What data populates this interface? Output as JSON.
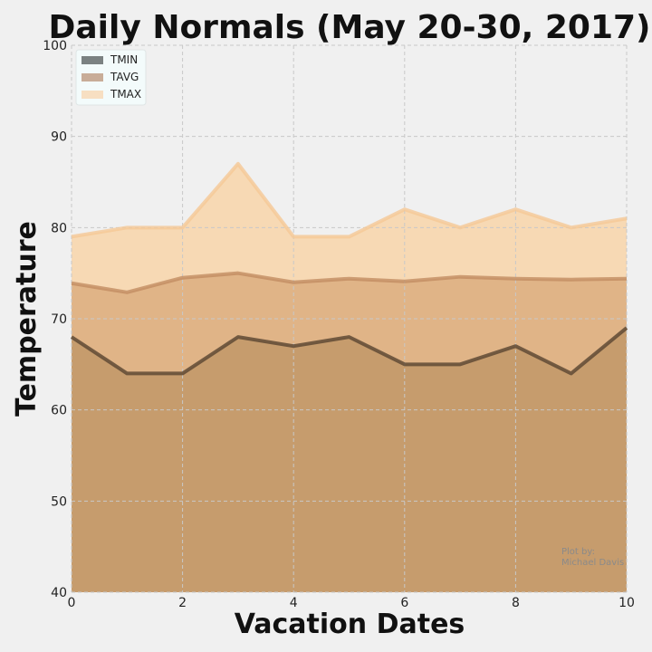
{
  "chart_data": {
    "type": "area",
    "title": "Daily Normals (May 20-30, 2017)",
    "xlabel": "Vacation Dates",
    "ylabel": "Temperature",
    "xlim": [
      0,
      10
    ],
    "ylim": [
      40,
      100
    ],
    "xticks": [
      0,
      2,
      4,
      6,
      8,
      10
    ],
    "yticks": [
      40,
      50,
      60,
      70,
      80,
      90,
      100
    ],
    "grid": true,
    "legend_position": "top-left",
    "x": [
      0,
      1,
      2,
      3,
      4,
      5,
      6,
      7,
      8,
      9,
      10
    ],
    "series": [
      {
        "name": "TMIN",
        "color": "#5f4a35",
        "fill": "#c69c6d",
        "legend_color": "#7b8282",
        "values": [
          68,
          64,
          64,
          68,
          67,
          68,
          65,
          65,
          67,
          64,
          69
        ]
      },
      {
        "name": "TAVG",
        "color": "#c28c62",
        "fill": "#e0b487",
        "legend_color": "#c8ad98",
        "values": [
          73.9,
          72.9,
          74.5,
          75.0,
          74.0,
          74.4,
          74.1,
          74.6,
          74.4,
          74.3,
          74.4
        ]
      },
      {
        "name": "TMAX",
        "color": "#f5c896",
        "fill": "#f7d9b4",
        "legend_color": "#f7dfc2",
        "values": [
          79,
          80,
          80,
          87,
          79,
          79,
          82,
          80,
          82,
          80,
          81
        ]
      }
    ],
    "annotation": "Plot by:\nMichael Davis"
  }
}
